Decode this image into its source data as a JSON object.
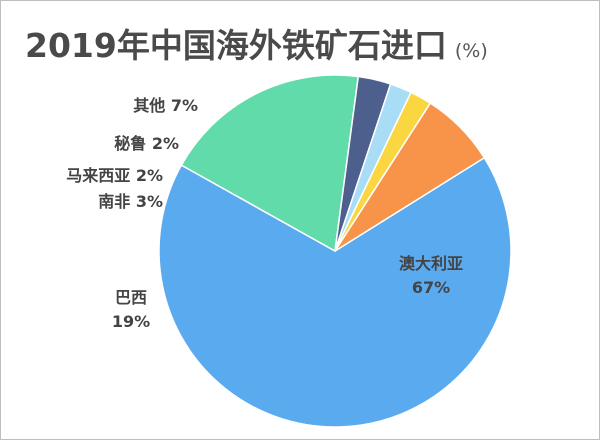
{
  "chart_data": {
    "type": "pie",
    "title": "2019年中国海外铁矿石进口",
    "unit": "(%)",
    "slices": [
      {
        "label": "澳大利亚",
        "value": 67,
        "display": "67%",
        "color": "#5aaaf0"
      },
      {
        "label": "巴西",
        "value": 19,
        "display": "19%",
        "color": "#62dbaa"
      },
      {
        "label": "南非",
        "value": 3,
        "display": "3%",
        "color": "#4d5f8c"
      },
      {
        "label": "马来西亚",
        "value": 2,
        "display": "2%",
        "color": "#a9dcf5"
      },
      {
        "label": "秘鲁",
        "value": 2,
        "display": "2%",
        "color": "#fad640"
      },
      {
        "label": "其他",
        "value": 7,
        "display": "7%",
        "color": "#f8944a"
      }
    ]
  }
}
